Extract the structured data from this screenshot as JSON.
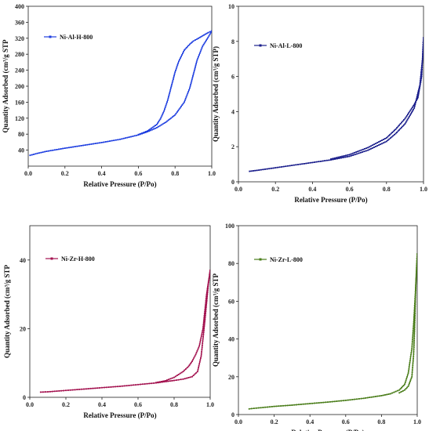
{
  "chart_data": [
    {
      "type": "line",
      "title": "",
      "xlabel": "Relative Pressure (P/Po)",
      "ylabel": "Quantity Adsorbed (cm³/g STP",
      "xlim": [
        0.0,
        1.0
      ],
      "ylim": [
        0,
        400
      ],
      "xticks": [
        "0.0",
        "0.2",
        "0.4",
        "0.6",
        "0.8",
        "1.0"
      ],
      "yticks": [
        "40",
        "80",
        "120",
        "160",
        "200",
        "240",
        "280",
        "320",
        "360",
        "400"
      ],
      "legend": "top-left",
      "color": "#1f3fe0",
      "series": [
        {
          "name": "Ni-Al-H-800",
          "adsorption": [
            [
              0.01,
              27
            ],
            [
              0.05,
              32
            ],
            [
              0.1,
              37
            ],
            [
              0.2,
              45
            ],
            [
              0.3,
              52
            ],
            [
              0.4,
              59
            ],
            [
              0.5,
              67
            ],
            [
              0.6,
              78
            ],
            [
              0.65,
              86
            ],
            [
              0.7,
              96
            ],
            [
              0.75,
              110
            ],
            [
              0.8,
              128
            ],
            [
              0.85,
              160
            ],
            [
              0.88,
              195
            ],
            [
              0.9,
              230
            ],
            [
              0.92,
              265
            ],
            [
              0.95,
              300
            ],
            [
              0.98,
              322
            ],
            [
              1.0,
              338
            ]
          ],
          "desorption": [
            [
              1.0,
              338
            ],
            [
              0.98,
              334
            ],
            [
              0.95,
              326
            ],
            [
              0.92,
              318
            ],
            [
              0.9,
              313
            ],
            [
              0.88,
              305
            ],
            [
              0.85,
              290
            ],
            [
              0.82,
              262
            ],
            [
              0.8,
              235
            ],
            [
              0.78,
              200
            ],
            [
              0.76,
              165
            ],
            [
              0.74,
              138
            ],
            [
              0.72,
              118
            ],
            [
              0.7,
              104
            ],
            [
              0.65,
              88
            ],
            [
              0.6,
              79
            ]
          ]
        }
      ]
    },
    {
      "type": "line",
      "title": "",
      "xlabel": "Relative Pressure (P/Po)",
      "ylabel": "Quantity Adsorbed (cm³/g STP)",
      "xlim": [
        0.0,
        1.0
      ],
      "ylim": [
        0,
        10
      ],
      "xticks": [
        "0.0",
        "0.2",
        "0.4",
        "0.6",
        "0.8",
        "1.0"
      ],
      "yticks": [
        "0",
        "2",
        "4",
        "6",
        "8",
        "10"
      ],
      "legend": "top-left",
      "color": "#1b1f8c",
      "series": [
        {
          "name": "Ni-Al-L-800",
          "adsorption": [
            [
              0.06,
              0.6
            ],
            [
              0.1,
              0.65
            ],
            [
              0.2,
              0.8
            ],
            [
              0.3,
              0.95
            ],
            [
              0.4,
              1.1
            ],
            [
              0.5,
              1.25
            ],
            [
              0.6,
              1.45
            ],
            [
              0.7,
              1.8
            ],
            [
              0.8,
              2.3
            ],
            [
              0.85,
              2.75
            ],
            [
              0.9,
              3.3
            ],
            [
              0.95,
              4.2
            ],
            [
              0.98,
              5.5
            ],
            [
              0.995,
              7.0
            ],
            [
              1.0,
              8.2
            ]
          ],
          "desorption": [
            [
              1.0,
              8.2
            ],
            [
              0.99,
              6.0
            ],
            [
              0.97,
              4.8
            ],
            [
              0.95,
              4.4
            ],
            [
              0.9,
              3.6
            ],
            [
              0.85,
              3.0
            ],
            [
              0.8,
              2.5
            ],
            [
              0.7,
              1.95
            ],
            [
              0.6,
              1.55
            ],
            [
              0.5,
              1.3
            ]
          ]
        }
      ]
    },
    {
      "type": "line",
      "title": "",
      "xlabel": "Relative Pressure (P/Po)",
      "ylabel": "Quantity Adsorbed (cm³/g STP",
      "xlim": [
        0.0,
        1.0
      ],
      "ylim": [
        0,
        50
      ],
      "xticks": [
        "0.0",
        "0.2",
        "0.4",
        "0.6",
        "0.8",
        "1.0"
      ],
      "yticks": [
        "0",
        "20",
        "40"
      ],
      "legend": "top-left",
      "color": "#a3124f",
      "series": [
        {
          "name": "Ni-Zr-H-800",
          "adsorption": [
            [
              0.06,
              1.5
            ],
            [
              0.1,
              1.6
            ],
            [
              0.2,
              2.0
            ],
            [
              0.3,
              2.4
            ],
            [
              0.4,
              2.8
            ],
            [
              0.5,
              3.2
            ],
            [
              0.6,
              3.7
            ],
            [
              0.7,
              4.2
            ],
            [
              0.8,
              4.9
            ],
            [
              0.85,
              5.3
            ],
            [
              0.9,
              6.0
            ],
            [
              0.93,
              7.5
            ],
            [
              0.95,
              12.0
            ],
            [
              0.97,
              22.0
            ],
            [
              0.99,
              33.0
            ],
            [
              1.0,
              37.0
            ]
          ],
          "desorption": [
            [
              1.0,
              37.0
            ],
            [
              0.98,
              30.0
            ],
            [
              0.96,
              20.0
            ],
            [
              0.94,
              15.0
            ],
            [
              0.92,
              12.5
            ],
            [
              0.9,
              10.5
            ],
            [
              0.88,
              9.0
            ],
            [
              0.85,
              7.5
            ],
            [
              0.8,
              5.8
            ],
            [
              0.75,
              4.8
            ],
            [
              0.7,
              4.3
            ]
          ]
        }
      ]
    },
    {
      "type": "line",
      "title": "",
      "xlabel": "Relative Pressure (P/Po)",
      "ylabel": "Quantity Adsorbed (cm³/g STP",
      "xlim": [
        0.0,
        1.0
      ],
      "ylim": [
        0,
        100
      ],
      "xticks": [
        "0.0",
        "0.2",
        "0.4",
        "0.6",
        "0.8",
        "1.0"
      ],
      "yticks": [
        "0",
        "20",
        "40",
        "60",
        "80",
        "100"
      ],
      "legend": "top-left",
      "color": "#4a7d1a",
      "series": [
        {
          "name": "Ni-Zr-L-800",
          "adsorption": [
            [
              0.06,
              3.0
            ],
            [
              0.1,
              3.4
            ],
            [
              0.2,
              4.3
            ],
            [
              0.3,
              5.0
            ],
            [
              0.4,
              5.8
            ],
            [
              0.5,
              6.6
            ],
            [
              0.6,
              7.5
            ],
            [
              0.7,
              8.6
            ],
            [
              0.8,
              10.0
            ],
            [
              0.85,
              11.0
            ],
            [
              0.9,
              13.0
            ],
            [
              0.93,
              16.0
            ],
            [
              0.95,
              22.0
            ],
            [
              0.97,
              35.0
            ],
            [
              0.98,
              48.0
            ],
            [
              0.99,
              65.0
            ],
            [
              1.0,
              85.0
            ]
          ],
          "desorption": [
            [
              1.0,
              85.0
            ],
            [
              0.995,
              75.0
            ],
            [
              0.99,
              62.0
            ],
            [
              0.985,
              45.0
            ],
            [
              0.98,
              32.0
            ],
            [
              0.97,
              20.0
            ],
            [
              0.95,
              15.0
            ],
            [
              0.93,
              13.0
            ],
            [
              0.9,
              11.5
            ]
          ]
        }
      ]
    }
  ]
}
